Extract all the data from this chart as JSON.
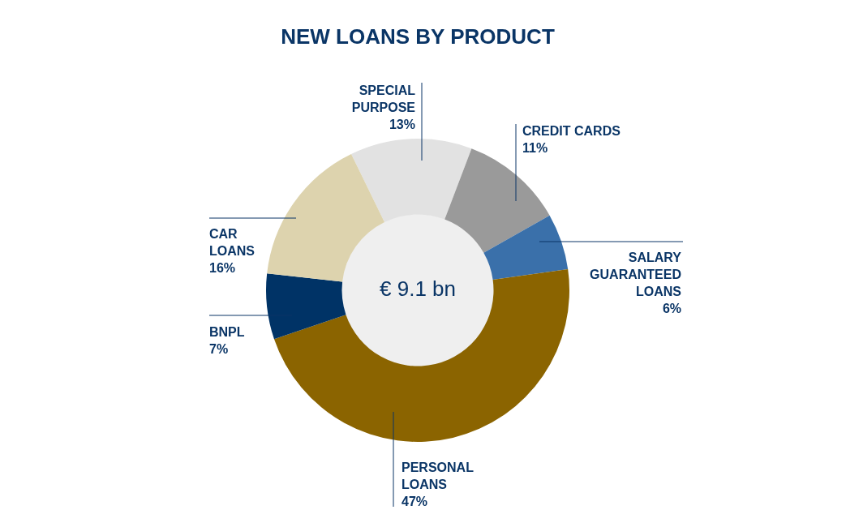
{
  "chart_data": {
    "type": "donut",
    "title": "NEW LOANS BY PRODUCT",
    "categories": [
      "SPECIAL PURPOSE",
      "CREDIT CARDS",
      "SALARY GUARANTEED LOANS",
      "PERSONAL LOANS",
      "BNPL",
      "CAR LOANS"
    ],
    "values": [
      13,
      11,
      6,
      47,
      7,
      16
    ],
    "value_labels": [
      "13%",
      "11%",
      "6%",
      "47%",
      "7%",
      "16%"
    ],
    "colors": [
      "#e2e2e2",
      "#9a9a9a",
      "#3a70aa",
      "#8b6400",
      "#003366",
      "#ddd3ae"
    ],
    "annotations": [
      "€ 9.1 bn"
    ],
    "legend": false
  }
}
